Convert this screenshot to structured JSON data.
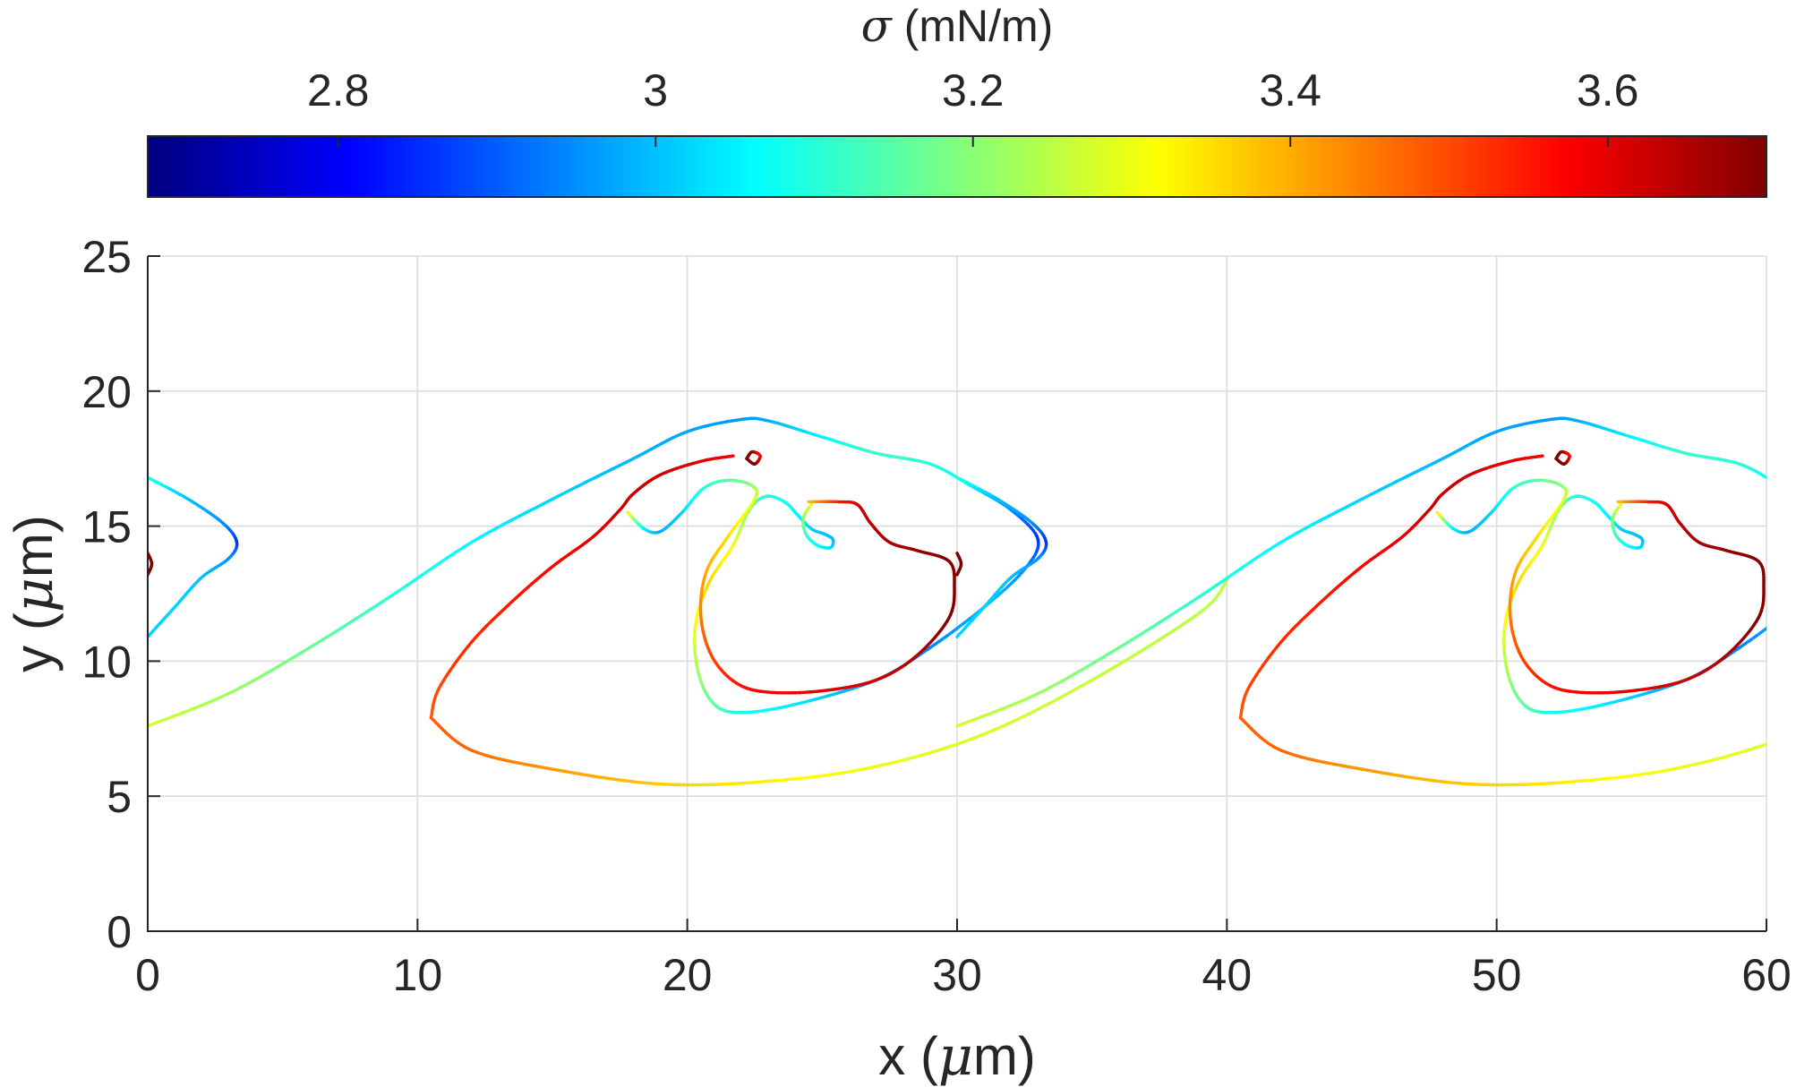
{
  "chart_data": {
    "type": "line",
    "description_colormap": "jet",
    "xlabel": "x (μm)",
    "xlabel_prefix": "x (",
    "xlabel_mu": "μ",
    "xlabel_suffix": "m)",
    "ylabel": "y (μm)",
    "ylabel_prefix": "y (",
    "ylabel_mu": "μ",
    "ylabel_suffix": "m)",
    "xlim": [
      0,
      60
    ],
    "ylim": [
      0,
      25
    ],
    "xticks": [
      0,
      10,
      20,
      30,
      40,
      50,
      60
    ],
    "yticks": [
      0,
      5,
      10,
      15,
      20,
      25
    ],
    "grid": true,
    "colorbar": {
      "label": "σ (mN/m)",
      "label_sigma": "σ",
      "label_rest": " (mN/m)",
      "range": [
        2.68,
        3.7
      ],
      "ticks": [
        2.8,
        3.0,
        3.2,
        3.4,
        3.6
      ],
      "tick_labels": [
        "2.8",
        "3",
        "3.2",
        "3.4",
        "3.6"
      ],
      "location": "top"
    },
    "series": [
      {
        "points": [
          [
            0,
            7.6
          ],
          [
            3,
            8.8
          ],
          [
            6,
            10.5
          ],
          [
            9,
            12.4
          ],
          [
            12,
            14.4
          ],
          [
            15,
            16.0
          ],
          [
            18,
            17.5
          ],
          [
            20,
            18.5
          ],
          [
            22,
            18.95
          ],
          [
            23,
            18.9
          ],
          [
            25,
            18.3
          ],
          [
            27,
            17.7
          ],
          [
            29,
            17.3
          ],
          [
            30.5,
            16.5
          ],
          [
            32,
            15.6
          ],
          [
            33,
            14.5
          ],
          [
            32.5,
            13.4
          ],
          [
            31,
            12
          ],
          [
            29,
            10.5
          ],
          [
            27,
            9.3
          ],
          [
            24,
            8.4
          ],
          [
            22,
            8.1
          ],
          [
            21,
            8.4
          ],
          [
            20.4,
            9.6
          ],
          [
            20.3,
            11.3
          ],
          [
            20.8,
            12.9
          ],
          [
            21.7,
            14.3
          ],
          [
            22.3,
            15.6
          ],
          [
            22.9,
            16.1
          ],
          [
            23.6,
            15.9
          ],
          [
            24.1,
            15.4
          ],
          [
            24.6,
            14.9
          ],
          [
            25.1,
            14.7
          ],
          [
            25.4,
            14.5
          ],
          [
            25.3,
            14.2
          ],
          [
            24.8,
            14.3
          ],
          [
            24.4,
            14.7
          ],
          [
            24.3,
            15.3
          ],
          [
            24.6,
            15.8
          ]
        ],
        "sigma": [
          3.28,
          3.22,
          3.17,
          3.11,
          3.06,
          3.02,
          2.99,
          2.97,
          2.96,
          2.98,
          3.05,
          3.12,
          3.1,
          3.05,
          2.95,
          2.85,
          2.95,
          3.0,
          2.94,
          2.96,
          3.04,
          3.08,
          3.15,
          3.22,
          3.3,
          3.36,
          3.3,
          3.2,
          3.1,
          3.08,
          3.05,
          3.02,
          3.0,
          3.0,
          3.02,
          3.06,
          3.12,
          3.2,
          3.3
        ]
      },
      {
        "points": [
          [
            10.5,
            7.9
          ],
          [
            12,
            6.7
          ],
          [
            15,
            6.0
          ],
          [
            19,
            5.45
          ],
          [
            23,
            5.55
          ],
          [
            27,
            6.1
          ],
          [
            31,
            7.3
          ],
          [
            35,
            9.3
          ],
          [
            39,
            11.8
          ],
          [
            40,
            13.0
          ]
        ],
        "sigma": [
          3.48,
          3.47,
          3.42,
          3.37,
          3.33,
          3.3,
          3.28,
          3.26,
          3.25,
          3.25
        ]
      },
      {
        "points": [
          [
            10.5,
            7.9
          ],
          [
            10.8,
            9.0
          ],
          [
            12,
            10.7
          ],
          [
            13.5,
            12.2
          ],
          [
            15,
            13.5
          ],
          [
            16.5,
            14.6
          ],
          [
            17.5,
            15.6
          ],
          [
            18,
            16.2
          ],
          [
            19,
            16.9
          ],
          [
            20.5,
            17.4
          ],
          [
            21.7,
            17.6
          ]
        ],
        "sigma": [
          3.48,
          3.5,
          3.53,
          3.55,
          3.57,
          3.6,
          3.62,
          3.63,
          3.62,
          3.6,
          3.58
        ]
      },
      {
        "points": [
          [
            17.8,
            15.5
          ],
          [
            18.4,
            14.9
          ],
          [
            19,
            14.8
          ],
          [
            19.8,
            15.5
          ],
          [
            20.6,
            16.4
          ],
          [
            21.5,
            16.7
          ],
          [
            22.4,
            16.5
          ],
          [
            22.5,
            16
          ],
          [
            21.5,
            14.6
          ],
          [
            20.7,
            13.3
          ],
          [
            20.5,
            11.7
          ],
          [
            20.9,
            10.2
          ],
          [
            21.8,
            9.2
          ],
          [
            23,
            8.85
          ],
          [
            25,
            8.9
          ],
          [
            27,
            9.3
          ],
          [
            28.5,
            10.2
          ],
          [
            29.7,
            11.6
          ],
          [
            29.9,
            12.8
          ],
          [
            29.7,
            13.7
          ],
          [
            28.5,
            14.1
          ],
          [
            27.5,
            14.4
          ],
          [
            26.8,
            15.1
          ],
          [
            26.3,
            15.8
          ],
          [
            25.6,
            15.9
          ],
          [
            24.5,
            15.9
          ]
        ],
        "sigma": [
          3.36,
          3.05,
          2.98,
          3.02,
          3.1,
          3.15,
          3.2,
          3.28,
          3.35,
          3.4,
          3.45,
          3.5,
          3.55,
          3.58,
          3.6,
          3.62,
          3.65,
          3.7,
          3.7,
          3.7,
          3.68,
          3.66,
          3.64,
          3.62,
          3.55,
          3.38
        ]
      },
      {
        "points": [
          [
            0,
            16.8
          ],
          [
            1.5,
            16
          ],
          [
            2.8,
            15.1
          ],
          [
            3.3,
            14.4
          ],
          [
            3.0,
            13.8
          ],
          [
            2,
            13.1
          ],
          [
            1,
            12.0
          ],
          [
            0,
            10.9
          ]
        ],
        "sigma": [
          3.1,
          3.0,
          2.95,
          2.85,
          2.95,
          3.0,
          3.02,
          3.02
        ]
      },
      {
        "points": [
          [
            0,
            13.2
          ],
          [
            0.15,
            13.6
          ],
          [
            0,
            14.0
          ]
        ],
        "sigma": [
          3.7,
          3.7,
          3.7
        ]
      },
      {
        "points": [
          [
            22.2,
            17.5
          ],
          [
            22.4,
            17.75
          ],
          [
            22.7,
            17.6
          ],
          [
            22.5,
            17.3
          ],
          [
            22.2,
            17.5
          ]
        ],
        "sigma": [
          3.7,
          3.7,
          3.55,
          3.7,
          3.7
        ]
      }
    ],
    "periodic_copy_offset": 30
  }
}
